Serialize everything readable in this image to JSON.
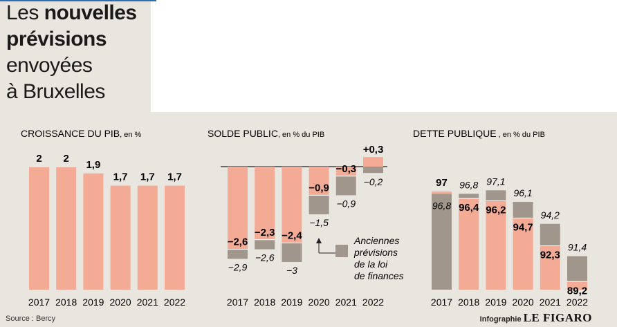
{
  "headline": {
    "line1_light": "Les ",
    "line1_bold": "nouvelles",
    "line2_bold": "prévisions",
    "line3": "envoyées",
    "line4": "à Bruxelles"
  },
  "colors": {
    "salmon": "#f3ab96",
    "grey": "#a0968b",
    "background": "#e9e5df"
  },
  "chart_data": [
    {
      "type": "bar",
      "title": "CROISSANCE DU PIB",
      "unit": ", en %",
      "categories": [
        "2017",
        "2018",
        "2019",
        "2020",
        "2021",
        "2022"
      ],
      "values": [
        2,
        2,
        1.9,
        1.7,
        1.7,
        1.7
      ],
      "labels": [
        "2",
        "2",
        "1,9",
        "1,7",
        "1,7",
        "1,7"
      ]
    },
    {
      "type": "bar",
      "title": "SOLDE PUBLIC",
      "unit": ", en % du PIB",
      "categories": [
        "2017",
        "2018",
        "2019",
        "2020",
        "2021",
        "2022"
      ],
      "series": [
        {
          "name": "Nouvelles prévisions",
          "values": [
            -2.6,
            -2.3,
            -2.4,
            -0.9,
            -0.3,
            0.3
          ],
          "labels": [
            "-2,6",
            "-2,3",
            "-2,4",
            "-0,9",
            "-0,3",
            "+0,3"
          ]
        },
        {
          "name": "Anciennes prévisions de la loi de finances",
          "values": [
            -2.9,
            -2.6,
            -3,
            -1.5,
            -0.9,
            -0.2
          ],
          "labels": [
            "-2,9",
            "-2,6",
            "-3",
            "-1,5",
            "-0,9",
            "-0,2"
          ]
        }
      ],
      "legend": "Anciennes prévisions de la loi de finances"
    },
    {
      "type": "bar",
      "title": "DETTE PUBLIQUE",
      "unit": " , en % du PIB",
      "categories": [
        "2017",
        "2018",
        "2019",
        "2020",
        "2021",
        "2022"
      ],
      "series": [
        {
          "name": "Nouvelles prévisions",
          "values": [
            97,
            96.4,
            96.2,
            94.7,
            92.3,
            89.2
          ],
          "labels": [
            "97",
            "96,4",
            "96,2",
            "94,7",
            "92,3",
            "89,2"
          ]
        },
        {
          "name": "Anciennes prévisions",
          "values": [
            96.8,
            96.8,
            97.1,
            96.1,
            94.2,
            91.4
          ],
          "labels": [
            "96,8",
            "96,8",
            "97,1",
            "96,1",
            "94,2",
            "91,4"
          ]
        }
      ]
    }
  ],
  "legend": {
    "line1": "Anciennes",
    "line2": "prévisions",
    "line3": "de la loi",
    "line4": "de finances"
  },
  "source": "Source : Bercy",
  "credit": {
    "prefix": "Infographie",
    "brand": "LE FIGARO"
  }
}
